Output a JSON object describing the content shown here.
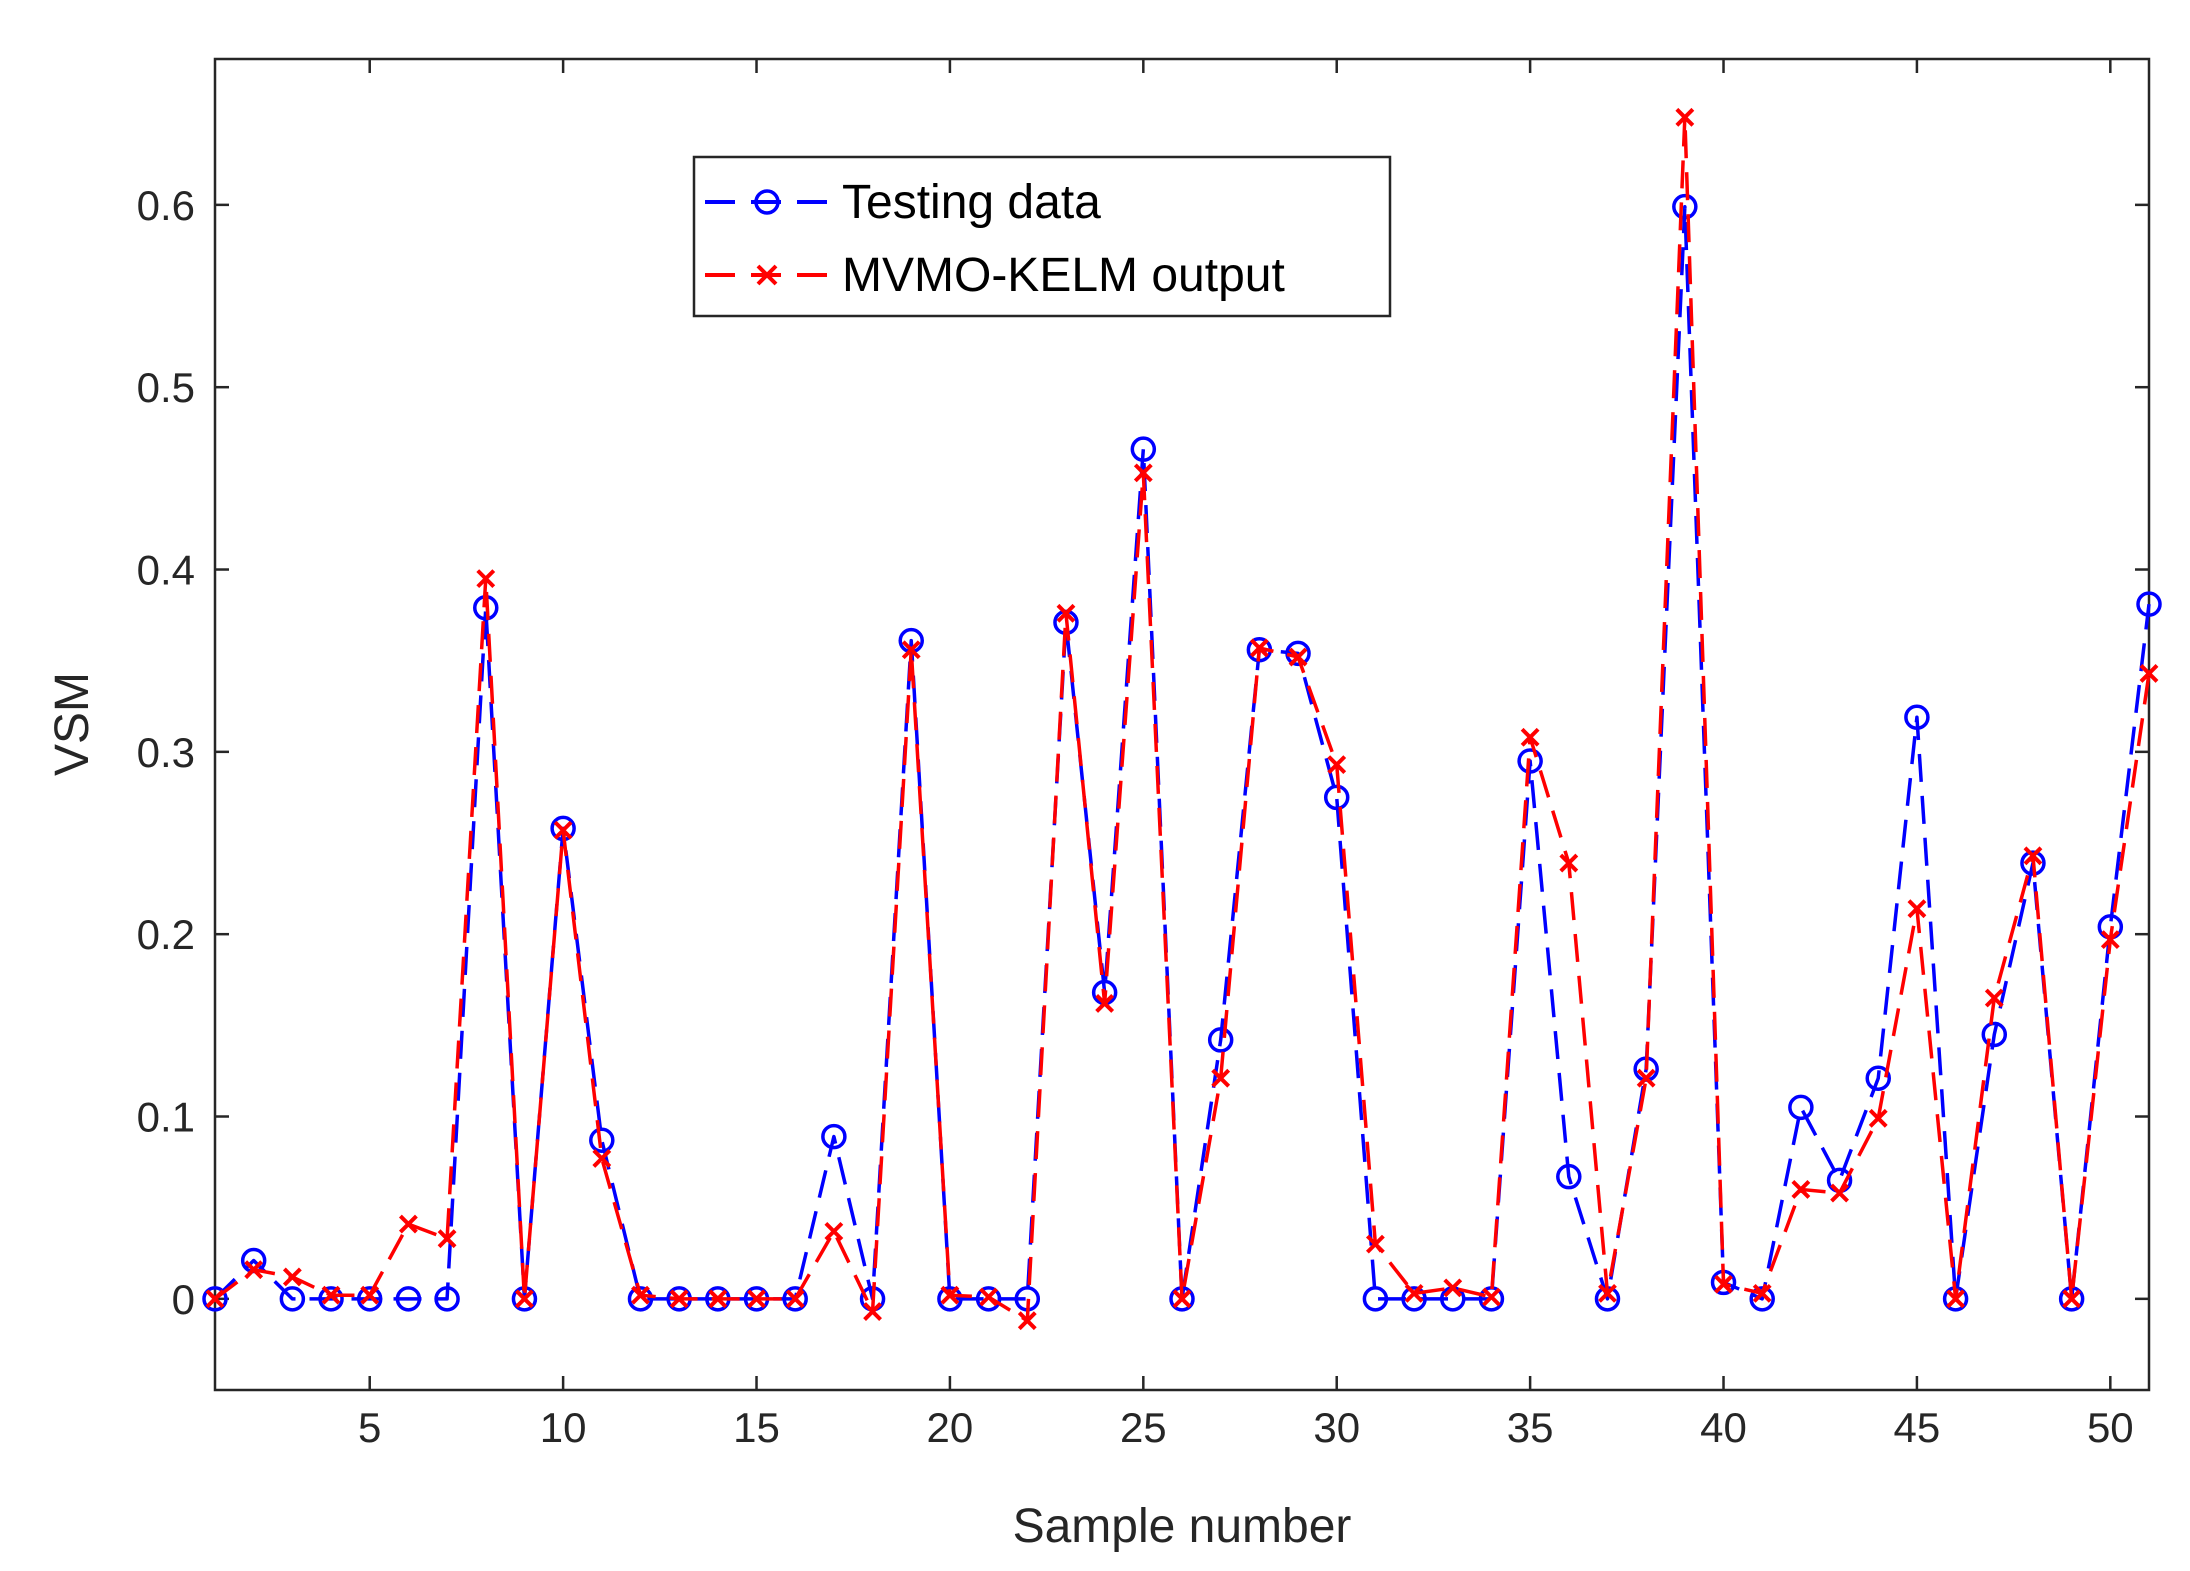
{
  "chart_data": {
    "type": "line",
    "title": "",
    "xlabel": "Sample number",
    "ylabel": "VSM",
    "xlim": [
      1,
      51
    ],
    "ylim": [
      -0.05,
      0.68
    ],
    "xticks": [
      5,
      10,
      15,
      20,
      25,
      30,
      35,
      40,
      45,
      50
    ],
    "xtick_labels": [
      "5",
      "10",
      "15",
      "20",
      "25",
      "30",
      "35",
      "40",
      "45",
      "50"
    ],
    "yticks": [
      0,
      0.1,
      0.2,
      0.3,
      0.4,
      0.5,
      0.6
    ],
    "ytick_labels": [
      "0",
      "0.1",
      "0.2",
      "0.3",
      "0.4",
      "0.5",
      "0.6"
    ],
    "grid": false,
    "legend_position": "top-center",
    "x": [
      1,
      2,
      3,
      4,
      5,
      6,
      7,
      8,
      9,
      10,
      11,
      12,
      13,
      14,
      15,
      16,
      17,
      18,
      19,
      20,
      21,
      22,
      23,
      24,
      25,
      26,
      27,
      28,
      29,
      30,
      31,
      32,
      33,
      34,
      35,
      36,
      37,
      38,
      39,
      40,
      41,
      42,
      43,
      44,
      45,
      46,
      47,
      48,
      49,
      50,
      51
    ],
    "series": [
      {
        "name": "Testing data",
        "color": "#0000ff",
        "marker": "circle",
        "linestyle": "dashed",
        "values": [
          0,
          0.021,
          0,
          0,
          0,
          0,
          0,
          0.379,
          0,
          0.258,
          0.087,
          0,
          0,
          0,
          0,
          0,
          0.089,
          0,
          0.361,
          0,
          0,
          0,
          0.371,
          0.168,
          0.466,
          0,
          0.142,
          0.356,
          0.354,
          0.275,
          0,
          0,
          0,
          0,
          0.295,
          0.067,
          0,
          0.126,
          0.599,
          0.009,
          0,
          0.105,
          0.065,
          0.121,
          0.319,
          0,
          0.145,
          0.239,
          0,
          0.204,
          0.381
        ]
      },
      {
        "name": "MVMO-KELM output",
        "color": "#ff0000",
        "marker": "x",
        "linestyle": "dashed",
        "values": [
          0,
          0.016,
          0.012,
          0.002,
          0.002,
          0.041,
          0.033,
          0.395,
          0,
          0.257,
          0.077,
          0.002,
          0,
          0,
          0,
          0,
          0.037,
          -0.007,
          0.356,
          0.002,
          0.001,
          -0.012,
          0.376,
          0.162,
          0.453,
          0,
          0.121,
          0.357,
          0.352,
          0.293,
          0.03,
          0.003,
          0.006,
          0.001,
          0.308,
          0.239,
          0.003,
          0.121,
          0.648,
          0.008,
          0.003,
          0.06,
          0.058,
          0.099,
          0.214,
          0,
          0.165,
          0.243,
          0,
          0.197,
          0.343
        ]
      }
    ]
  }
}
